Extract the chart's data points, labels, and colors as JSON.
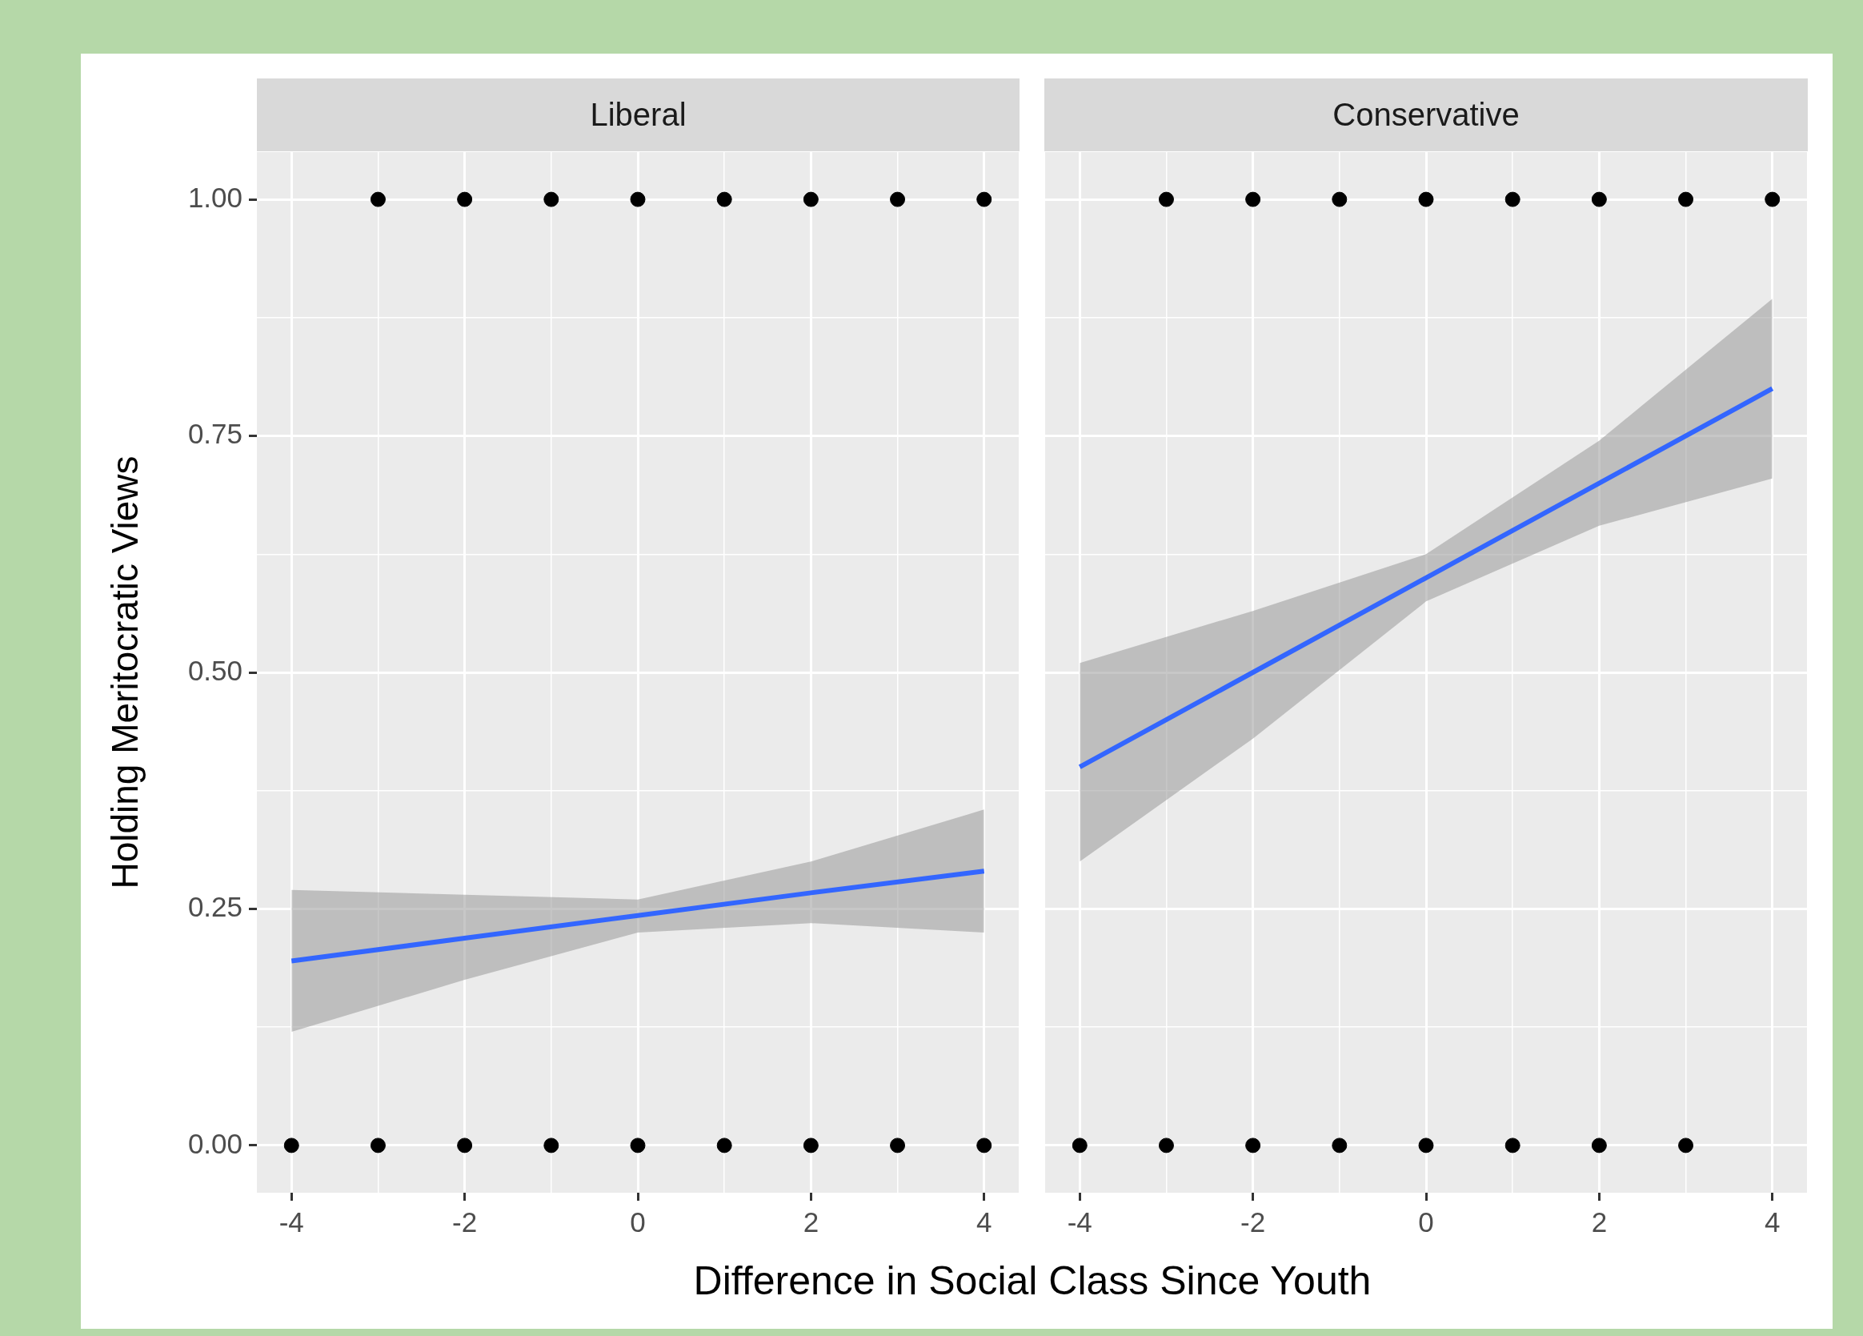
{
  "chart_data": [
    {
      "type": "scatter",
      "title": "Liberal",
      "ylabel": "Holding Meritocratic Views",
      "xlabel": "Difference in Social Class Since Youth",
      "grid": true,
      "xlim": [
        -4.4,
        4.4
      ],
      "xticks": [
        -4,
        {
          "value": -3,
          "label": null
        },
        -2,
        {
          "value": -1,
          "label": null
        },
        0,
        {
          "value": 1,
          "label": null
        },
        2,
        {
          "value": 3,
          "label": null
        },
        4
      ],
      "ylim": [
        -0.05,
        1.05
      ],
      "yticks": [
        {
          "value": 0,
          "label": "0.00"
        },
        {
          "value": 0.125,
          "label": null
        },
        {
          "value": 0.25,
          "label": "0.25"
        },
        {
          "value": 0.375,
          "label": null
        },
        {
          "value": 0.5,
          "label": "0.50"
        },
        {
          "value": 0.625,
          "label": null
        },
        {
          "value": 0.75,
          "label": "0.75"
        },
        {
          "value": 0.875,
          "label": null
        },
        {
          "value": 1,
          "label": "1.00"
        }
      ],
      "series": [
        {
          "type": "scatter",
          "marker": "circle",
          "color": "#000000",
          "x": [
            -3,
            -2,
            -1,
            0,
            1,
            2,
            3,
            4,
            -4,
            -3,
            -2,
            -1,
            0,
            1,
            2,
            3,
            4
          ],
          "values": [
            1,
            1,
            1,
            1,
            1,
            1,
            1,
            1,
            0,
            0,
            0,
            0,
            0,
            0,
            0,
            0,
            0
          ]
        },
        {
          "type": "line",
          "marker": "none",
          "color": "#3366ff",
          "x": [
            -4,
            -2,
            0,
            2,
            4
          ],
          "values": [
            0.195,
            0.219,
            0.243,
            0.267,
            0.29
          ],
          "lower": [
            0.12,
            0.175,
            0.225,
            0.235,
            0.225
          ],
          "upper": [
            0.27,
            0.265,
            0.26,
            0.3,
            0.355
          ]
        }
      ]
    },
    {
      "type": "scatter",
      "title": "Conservative",
      "grid": true,
      "tick_labels": "x",
      "xlim": [
        -4.4,
        4.4
      ],
      "xticks": [
        -4,
        {
          "value": -3,
          "label": null
        },
        -2,
        {
          "value": -1,
          "label": null
        },
        0,
        {
          "value": 1,
          "label": null
        },
        2,
        {
          "value": 3,
          "label": null
        },
        4
      ],
      "ylim": [
        -0.05,
        1.05
      ],
      "yticks": [
        {
          "value": 0,
          "label": null
        },
        {
          "value": 0.125,
          "label": null
        },
        {
          "value": 0.25,
          "label": null
        },
        {
          "value": 0.375,
          "label": null
        },
        {
          "value": 0.5,
          "label": null
        },
        {
          "value": 0.625,
          "label": null
        },
        {
          "value": 0.75,
          "label": null
        },
        {
          "value": 0.875,
          "label": null
        },
        {
          "value": 1,
          "label": null
        }
      ],
      "series": [
        {
          "type": "scatter",
          "marker": "circle",
          "color": "#000000",
          "x": [
            -3,
            -2,
            -1,
            0,
            1,
            2,
            3,
            4,
            -4,
            -3,
            -2,
            -1,
            0,
            1,
            2,
            3
          ],
          "values": [
            1,
            1,
            1,
            1,
            1,
            1,
            1,
            1,
            0,
            0,
            0,
            0,
            0,
            0,
            0,
            0
          ]
        },
        {
          "type": "line",
          "marker": "none",
          "color": "#3366ff",
          "x": [
            -4,
            -2,
            0,
            2,
            4
          ],
          "values": [
            0.4,
            0.5,
            0.6,
            0.7,
            0.8
          ],
          "lower": [
            0.3,
            0.43,
            0.575,
            0.655,
            0.705
          ],
          "upper": [
            0.51,
            0.565,
            0.625,
            0.745,
            0.895
          ]
        }
      ]
    }
  ]
}
